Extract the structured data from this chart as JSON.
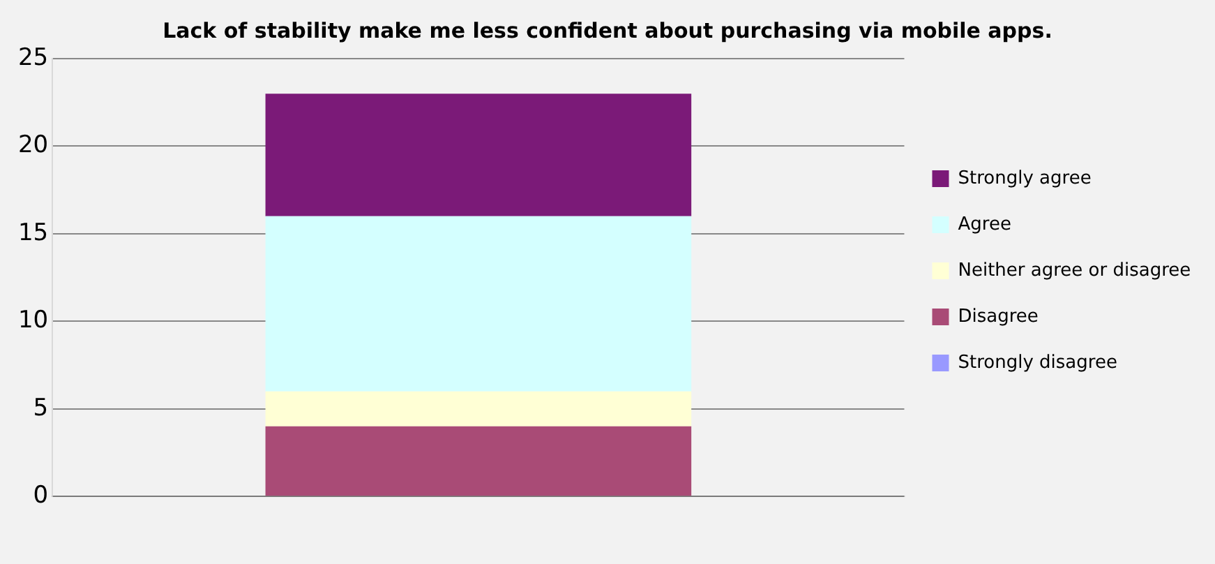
{
  "chart_data": {
    "type": "bar",
    "title": "Lack of stability make me less confident about purchasing via mobile apps.",
    "categories": [
      null
    ],
    "stacked": true,
    "ylim": [
      0,
      25
    ],
    "yticks": [
      0,
      5,
      10,
      15,
      20,
      25
    ],
    "grid": "y",
    "legend": "right",
    "series": [
      {
        "name": "Strongly disagree",
        "color": "#9999ff",
        "values": [
          0
        ]
      },
      {
        "name": "Disagree",
        "color": "#a94b76",
        "values": [
          4
        ]
      },
      {
        "name": "Neither agree or disagree",
        "color": "#ffffd5",
        "values": [
          2
        ]
      },
      {
        "name": "Agree",
        "color": "#d4ffff",
        "values": [
          10
        ]
      },
      {
        "name": "Strongly agree",
        "color": "#7b1a78",
        "values": [
          7
        ]
      }
    ]
  }
}
